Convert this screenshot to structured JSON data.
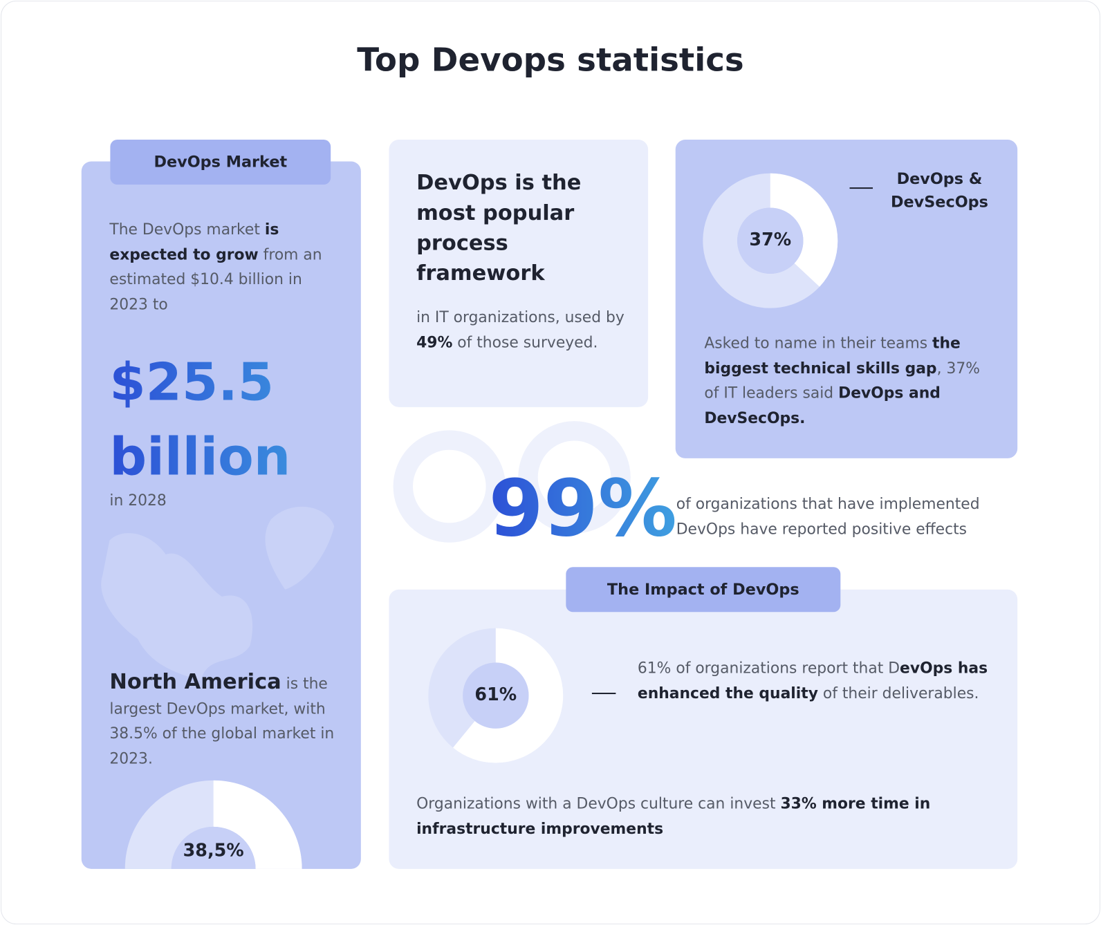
{
  "title": "Top Devops statistics",
  "market": {
    "tab": "DevOps Market",
    "intro": [
      {
        "text": "The DevOps market "
      },
      {
        "text": "is expected to grow",
        "bold": true
      },
      {
        "text": " from an estimated $10.4 billion in 2023 to"
      }
    ],
    "highlight": "$25.5 billion",
    "highlight_note": "in 2028",
    "region": [
      {
        "text": "North America",
        "bold": true,
        "large": true
      },
      {
        "text": " is the largest DevOps market, with 38.5% of the global market in 2023."
      }
    ],
    "donut": {
      "label": "38,5%",
      "value": 38.5
    }
  },
  "popular": {
    "heading": "DevOps is the most popular process framework",
    "body": [
      {
        "text": "in IT organizations, used by "
      },
      {
        "text": "49%",
        "bold": true
      },
      {
        "text": " of those surveyed."
      }
    ]
  },
  "skills": {
    "legend": "DevOps & DevSecOps",
    "donut": {
      "label": "37%",
      "value": 37
    },
    "body": [
      {
        "text": "Asked to name in their teams "
      },
      {
        "text": "the biggest technical skills gap",
        "bold": true
      },
      {
        "text": ", 37% of IT leaders said "
      },
      {
        "text": "DevOps and DevSecOps.",
        "bold": true
      }
    ]
  },
  "effects": {
    "value_label": "99%",
    "text": "of organizations that have implemented DevOps have reported positive effects"
  },
  "impact": {
    "tab": "The Impact of DevOps",
    "donut": {
      "label": "61%",
      "value": 61
    },
    "body": [
      {
        "text": "61% of organizations report that D"
      },
      {
        "text": "evOps has enhanced the quality",
        "bold": true
      },
      {
        "text": " of their deliverables."
      }
    ],
    "footer": [
      {
        "text": "Organizations with a DevOps culture can invest "
      },
      {
        "text": "33% more time in infrastructure improvements",
        "bold": true
      }
    ]
  }
}
